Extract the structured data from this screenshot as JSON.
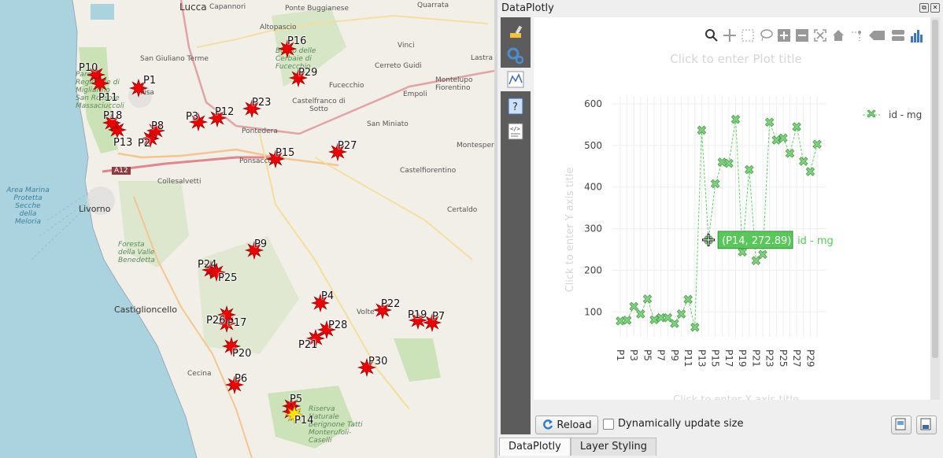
{
  "map": {
    "places": [
      {
        "name": "Lucca"
      },
      {
        "name": "Capannori"
      },
      {
        "name": "Ponte Buggianese"
      },
      {
        "name": "Quarrata"
      },
      {
        "name": "Altopascio"
      },
      {
        "name": "San Giuliano Terme"
      },
      {
        "name": "Vinci"
      },
      {
        "name": "Cerreto Guidi"
      },
      {
        "name": "Fucecchio"
      },
      {
        "name": "Montelupo Fiorentino"
      },
      {
        "name": "Empoli"
      },
      {
        "name": "Lastra"
      },
      {
        "name": "Pisa"
      },
      {
        "name": "Castelfranco di Sotto"
      },
      {
        "name": "San Miniato"
      },
      {
        "name": "Pontedera"
      },
      {
        "name": "Montespert"
      },
      {
        "name": "Ponsacco"
      },
      {
        "name": "Castelfiorentino"
      },
      {
        "name": "Collesalvetti"
      },
      {
        "name": "Livorno"
      },
      {
        "name": "Certaldo"
      },
      {
        "name": "Castiglioncello"
      },
      {
        "name": "Volte"
      },
      {
        "name": "Cecina"
      },
      {
        "name": "A12"
      }
    ],
    "sea_label": "Area Marina Protetta Secche della Meloria",
    "park_labels": [
      "Parco Regionale di Migliarino San Rossore Massaciuccoli",
      "Foresta della Valle Benedetta",
      "Riserva Naturale Berignone Tatti Monterufoli-Caselli",
      "Bosco delle Cerbaie di Fucecchio"
    ],
    "points": [
      {
        "id": "P1"
      },
      {
        "id": "P2"
      },
      {
        "id": "P3"
      },
      {
        "id": "P4"
      },
      {
        "id": "P5"
      },
      {
        "id": "P6"
      },
      {
        "id": "P7"
      },
      {
        "id": "P8"
      },
      {
        "id": "P9"
      },
      {
        "id": "P10"
      },
      {
        "id": "P11"
      },
      {
        "id": "P12"
      },
      {
        "id": "P13"
      },
      {
        "id": "P14",
        "selected": true
      },
      {
        "id": "P15"
      },
      {
        "id": "P16"
      },
      {
        "id": "P17"
      },
      {
        "id": "P18"
      },
      {
        "id": "P19"
      },
      {
        "id": "P20"
      },
      {
        "id": "P21"
      },
      {
        "id": "P22"
      },
      {
        "id": "P23"
      },
      {
        "id": "P24"
      },
      {
        "id": "P25"
      },
      {
        "id": "P26"
      },
      {
        "id": "P27"
      },
      {
        "id": "P28"
      },
      {
        "id": "P29"
      },
      {
        "id": "P30"
      }
    ]
  },
  "dock": {
    "title": "DataPlotly",
    "reload_label": "Reload",
    "dynamic_size_label": "Dynamically update size",
    "dynamic_size_checked": false,
    "tabs": [
      {
        "label": "DataPlotly",
        "active": true
      },
      {
        "label": "Layer Styling",
        "active": false
      }
    ]
  },
  "plot": {
    "title_placeholder": "Click to enter Plot title",
    "y_title_placeholder": "Click to enter Y axis title",
    "x_title_placeholder": "Click to enter X axis title",
    "legend_label": "id - mg",
    "hover_text": "(P14, 272.89)",
    "hover_trace": "id - mg",
    "line_color": "#66cc66",
    "marker_color": "#7ed37e"
  },
  "chart_data": {
    "type": "scatter",
    "mode": "lines+markers",
    "x": [
      "P1",
      "P2",
      "P3",
      "P4",
      "P5",
      "P6",
      "P7",
      "P8",
      "P9",
      "P10",
      "P11",
      "P12",
      "P13",
      "P14",
      "P15",
      "P16",
      "P17",
      "P18",
      "P19",
      "P20",
      "P21",
      "P22",
      "P23",
      "P24",
      "P25",
      "P26",
      "P27",
      "P28",
      "P29",
      "P30"
    ],
    "series": [
      {
        "name": "id - mg",
        "values": [
          78,
          80,
          113,
          95,
          131,
          81,
          86,
          86,
          72,
          95,
          130,
          63,
          537,
          273,
          408,
          460,
          457,
          563,
          244,
          442,
          223,
          238,
          556,
          513,
          518,
          481,
          545,
          462,
          437,
          503
        ]
      }
    ],
    "xtick_labels": [
      "P1",
      "P3",
      "P5",
      "P7",
      "P9",
      "P11",
      "P13",
      "P15",
      "P17",
      "P19",
      "P21",
      "P23",
      "P25",
      "P27",
      "P29"
    ],
    "yticks": [
      100,
      200,
      300,
      400,
      500,
      600
    ],
    "ylim": [
      40,
      600
    ],
    "grid": true,
    "legend_position": "top-right"
  }
}
